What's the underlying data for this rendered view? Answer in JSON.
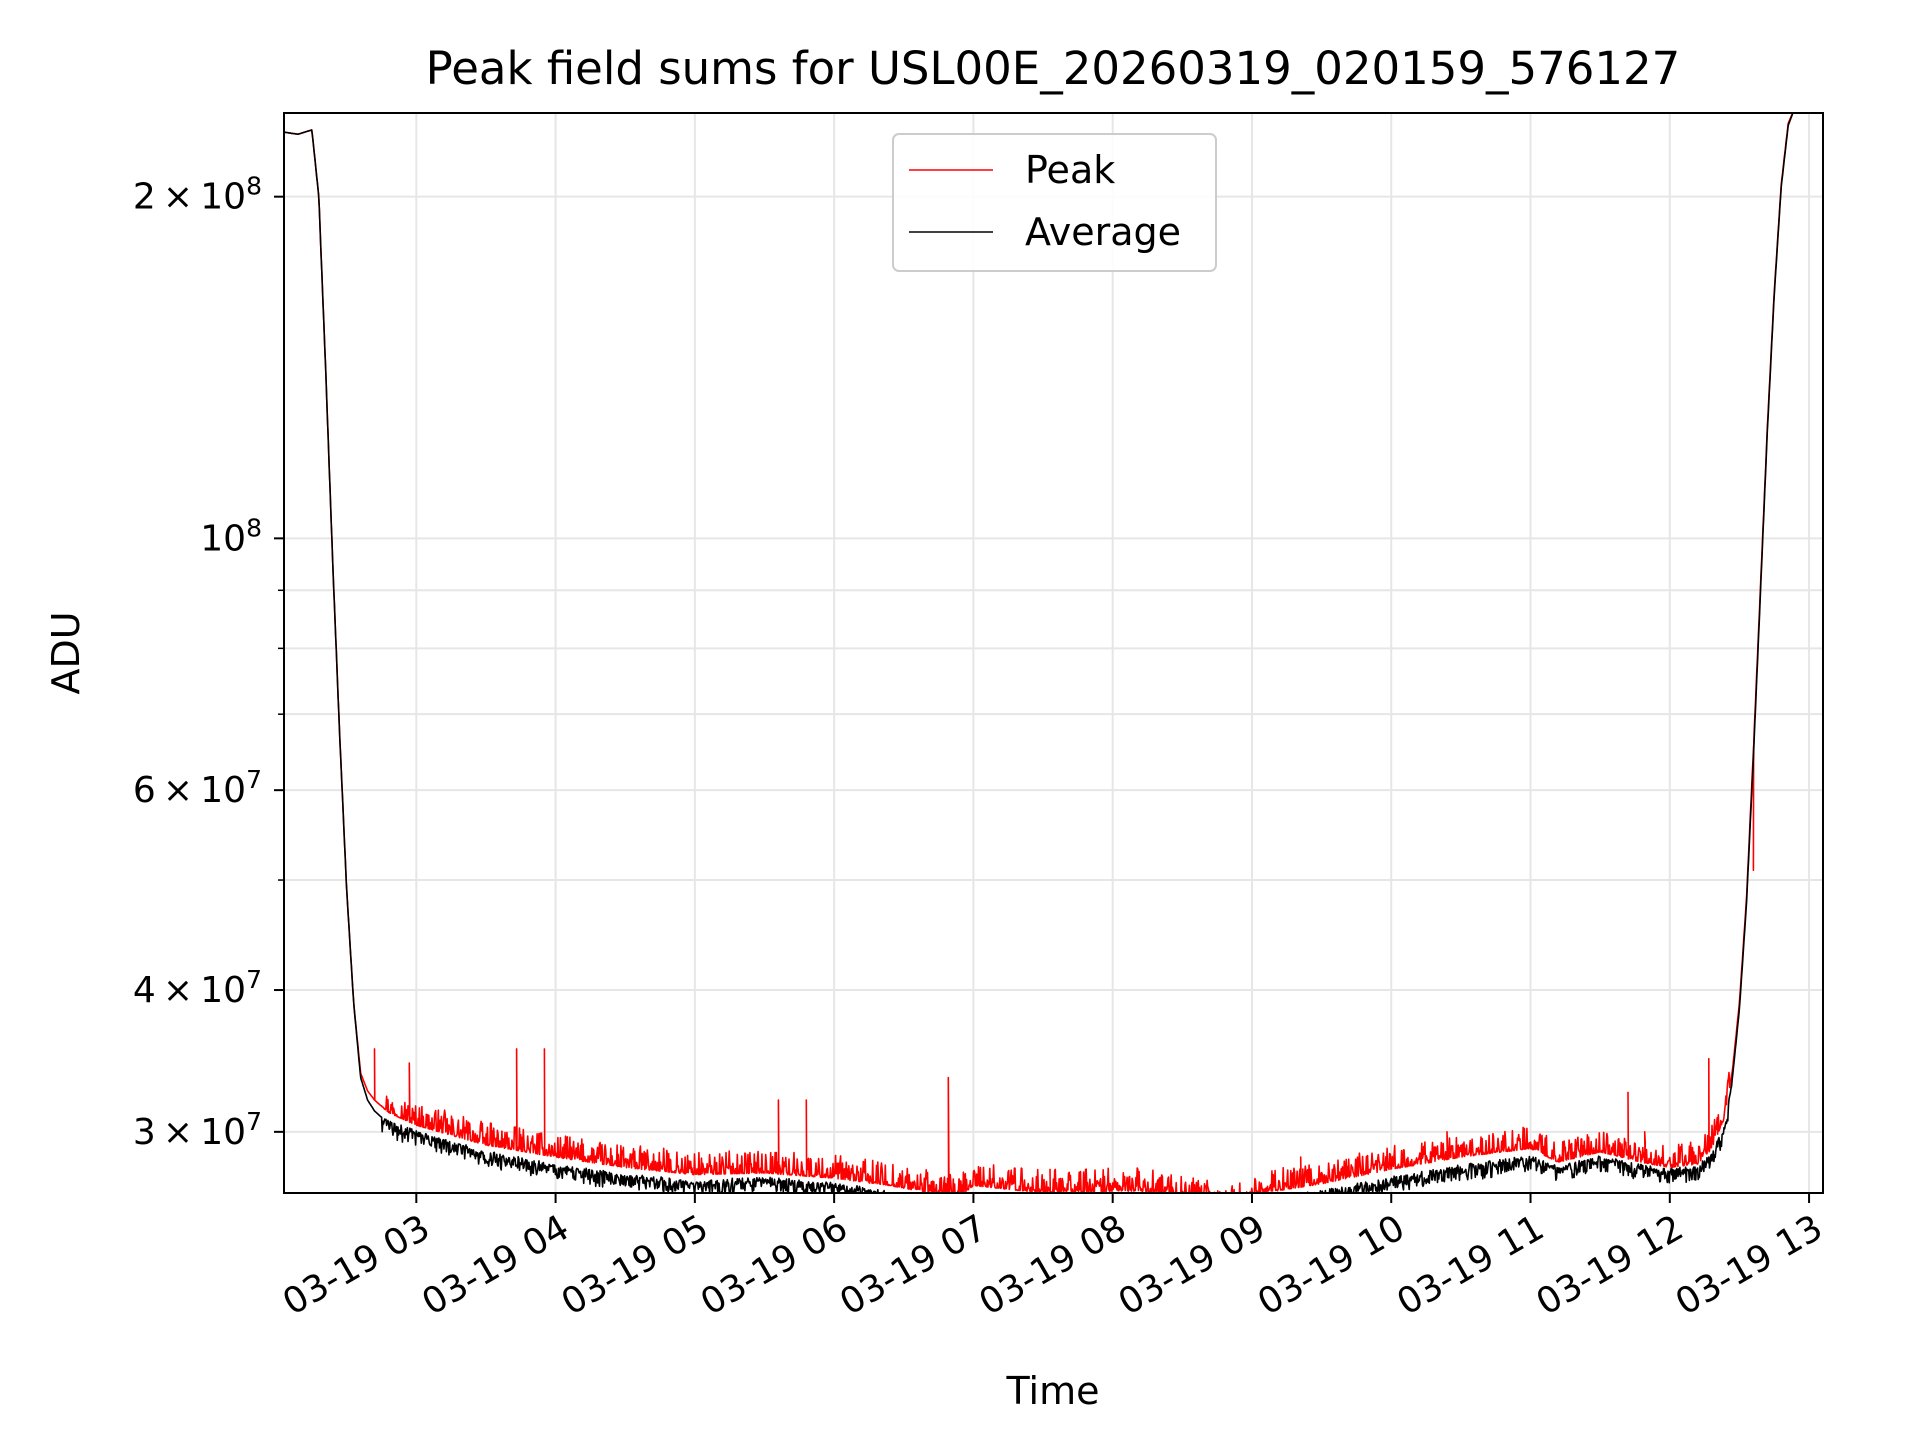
{
  "chart_data": {
    "type": "line",
    "title": "Peak field sums for USL00E_20260319_020159_576127",
    "xlabel": "Time",
    "ylabel": "ADU",
    "yscale": "log",
    "xlim": [
      2.05,
      13.1
    ],
    "ylim": [
      26500000,
      237000000
    ],
    "grid": true,
    "legend_position": "upper-center",
    "x_ticks": [
      {
        "value": 3,
        "label": "03-19 03"
      },
      {
        "value": 4,
        "label": "03-19 04"
      },
      {
        "value": 5,
        "label": "03-19 05"
      },
      {
        "value": 6,
        "label": "03-19 06"
      },
      {
        "value": 7,
        "label": "03-19 07"
      },
      {
        "value": 8,
        "label": "03-19 08"
      },
      {
        "value": 9,
        "label": "03-19 09"
      },
      {
        "value": 10,
        "label": "03-19 10"
      },
      {
        "value": 11,
        "label": "03-19 11"
      },
      {
        "value": 12,
        "label": "03-19 12"
      },
      {
        "value": 13,
        "label": "03-19 13"
      }
    ],
    "y_ticks": [
      {
        "value": 30000000,
        "mantissa": "3",
        "times": "×",
        "base": "10",
        "exp": "7"
      },
      {
        "value": 40000000,
        "mantissa": "4",
        "times": "×",
        "base": "10",
        "exp": "7"
      },
      {
        "value": 60000000,
        "mantissa": "6",
        "times": "×",
        "base": "10",
        "exp": "7"
      },
      {
        "value": 100000000,
        "mantissa": "",
        "times": "",
        "base": "10",
        "exp": "8"
      },
      {
        "value": 200000000,
        "mantissa": "2",
        "times": "×",
        "base": "10",
        "exp": "8"
      }
    ],
    "y_minor_ticks": [
      50000000,
      70000000,
      80000000,
      90000000
    ],
    "series": [
      {
        "name": "Peak",
        "color": "#ff0000",
        "x": [
          2.05,
          2.15,
          2.25,
          2.3,
          2.35,
          2.4,
          2.45,
          2.5,
          2.55,
          2.6,
          2.65,
          2.7,
          2.75,
          2.8,
          3.0,
          3.5,
          4.0,
          4.5,
          5.0,
          5.5,
          6.0,
          6.4,
          6.9,
          7.0,
          7.5,
          8.0,
          8.2,
          8.5,
          8.9,
          9.0,
          9.5,
          10.0,
          10.5,
          11.0,
          11.2,
          11.5,
          11.8,
          12.0,
          12.2,
          12.3,
          12.4,
          12.45,
          12.5,
          12.55,
          12.6,
          12.65,
          12.7,
          12.75,
          12.8,
          12.85,
          12.9
        ],
        "y": [
          228000000,
          227000000,
          229000000,
          200000000,
          140000000,
          95000000,
          67000000,
          49000000,
          39000000,
          33800000,
          32600000,
          32000000,
          31600000,
          31200000,
          30400000,
          29200000,
          28500000,
          27900000,
          27500000,
          27600000,
          27300000,
          26900000,
          26200000,
          26900000,
          26500000,
          26600000,
          26600000,
          26200000,
          25800000,
          26400000,
          27000000,
          27800000,
          28500000,
          29000000,
          28200000,
          28800000,
          28200000,
          27900000,
          28100000,
          29000000,
          31000000,
          34000000,
          39000000,
          48000000,
          65000000,
          90000000,
          125000000,
          165000000,
          205000000,
          232000000,
          240000000
        ],
        "noise_amplitude": 0.022,
        "spikes": [
          {
            "x": 2.7,
            "y": 35500000
          },
          {
            "x": 2.95,
            "y": 34500000
          },
          {
            "x": 3.72,
            "y": 35500000
          },
          {
            "x": 3.92,
            "y": 35500000
          },
          {
            "x": 5.6,
            "y": 32000000
          },
          {
            "x": 5.8,
            "y": 32000000
          },
          {
            "x": 6.82,
            "y": 33500000
          },
          {
            "x": 7.55,
            "y": 27800000
          },
          {
            "x": 9.35,
            "y": 28500000
          },
          {
            "x": 10.4,
            "y": 30000000
          },
          {
            "x": 11.7,
            "y": 32500000
          },
          {
            "x": 11.82,
            "y": 30000000
          },
          {
            "x": 12.28,
            "y": 34800000
          },
          {
            "x": 12.6,
            "y": 51000000
          }
        ]
      },
      {
        "name": "Average",
        "color": "#000000",
        "x": [
          2.05,
          2.15,
          2.25,
          2.3,
          2.35,
          2.4,
          2.45,
          2.5,
          2.55,
          2.6,
          2.65,
          2.7,
          2.75,
          2.8,
          3.0,
          3.5,
          4.0,
          4.5,
          5.0,
          5.5,
          6.0,
          6.4,
          6.9,
          7.0,
          7.5,
          8.0,
          8.2,
          8.5,
          8.9,
          9.0,
          9.5,
          10.0,
          10.5,
          11.0,
          11.2,
          11.5,
          11.8,
          12.0,
          12.2,
          12.3,
          12.4,
          12.45,
          12.5,
          12.55,
          12.6,
          12.65,
          12.7,
          12.75,
          12.8,
          12.85,
          12.9
        ],
        "y": [
          228000000,
          227000000,
          229000000,
          200000000,
          140000000,
          95000000,
          67000000,
          49000000,
          39000000,
          33500000,
          32000000,
          31300000,
          30900000,
          30600000,
          30000000,
          28800000,
          28000000,
          27500000,
          27100000,
          27300000,
          27000000,
          26500000,
          25800000,
          26500000,
          26000000,
          26100000,
          26200000,
          25900000,
          25600000,
          26000000,
          26600000,
          27300000,
          28000000,
          28500000,
          27900000,
          28500000,
          28000000,
          27800000,
          27900000,
          28700000,
          30500000,
          33500000,
          38500000,
          47500000,
          64000000,
          89000000,
          124000000,
          164000000,
          204000000,
          231000000,
          240000000
        ],
        "noise_amplitude": 0.018
      }
    ]
  }
}
